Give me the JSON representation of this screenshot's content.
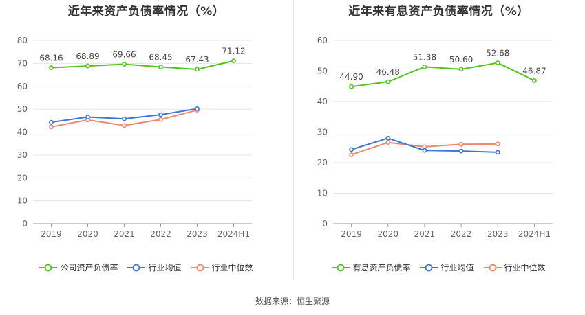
{
  "colors": {
    "series_main": "#52c41a",
    "series_avg": "#3b76d8",
    "series_median": "#f0876a",
    "grid": "#e6e6e6",
    "axis": "#999999",
    "text": "#333333"
  },
  "source_text": "数据来源：恒生聚源",
  "chart_data": [
    {
      "type": "line",
      "title": "近年来资产负债率情况（%）",
      "categories": [
        "2019",
        "2020",
        "2021",
        "2022",
        "2023",
        "2024H1"
      ],
      "ylim": [
        0,
        80
      ],
      "yticks": [
        0,
        10,
        20,
        30,
        40,
        50,
        60,
        70,
        80
      ],
      "grid": true,
      "legend_position": "bottom",
      "series": [
        {
          "name": "公司资产负债率",
          "color_key": "series_main",
          "labeled": true,
          "values": [
            68.16,
            68.89,
            69.66,
            68.45,
            67.43,
            71.12
          ],
          "labels": [
            "68.16",
            "68.89",
            "69.66",
            "68.45",
            "67.43",
            "71.12"
          ]
        },
        {
          "name": "行业均值",
          "color_key": "series_avg",
          "labeled": false,
          "values": [
            44.3,
            46.6,
            45.8,
            47.6,
            50.2,
            null
          ]
        },
        {
          "name": "行业中位数",
          "color_key": "series_median",
          "labeled": false,
          "values": [
            42.3,
            45.3,
            42.9,
            45.5,
            49.6,
            null
          ]
        }
      ]
    },
    {
      "type": "line",
      "title": "近年来有息资产负债率情况（%）",
      "categories": [
        "2019",
        "2020",
        "2021",
        "2022",
        "2023",
        "2024H1"
      ],
      "ylim": [
        0,
        60
      ],
      "yticks": [
        0,
        10,
        20,
        30,
        40,
        50,
        60
      ],
      "grid": true,
      "legend_position": "bottom",
      "series": [
        {
          "name": "有息资产负债率",
          "color_key": "series_main",
          "labeled": true,
          "values": [
            44.9,
            46.48,
            51.38,
            50.6,
            52.68,
            46.87
          ],
          "labels": [
            "44.90",
            "46.48",
            "51.38",
            "50.60",
            "52.68",
            "46.87"
          ]
        },
        {
          "name": "行业均值",
          "color_key": "series_avg",
          "labeled": false,
          "values": [
            24.3,
            28.0,
            24.0,
            23.8,
            23.4,
            null
          ]
        },
        {
          "name": "行业中位数",
          "color_key": "series_median",
          "labeled": false,
          "values": [
            22.6,
            26.6,
            25.2,
            26.0,
            26.1,
            null
          ]
        }
      ]
    }
  ]
}
